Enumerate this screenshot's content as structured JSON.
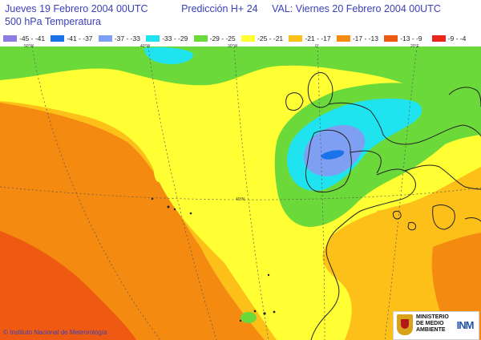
{
  "header": {
    "run": "Jueves 19 Febrero 2004 00UTC",
    "prediction": "Predicción H+ 24",
    "validity": "VAL: Viernes 20 Febrero 2004 00UTC",
    "field": "500  hPa Temperatura"
  },
  "legend": [
    {
      "label": "-45 - -41",
      "color": "#8a7fe0"
    },
    {
      "label": "-41 - -37",
      "color": "#1a73e8"
    },
    {
      "label": "-37 - -33",
      "color": "#7f9ff2"
    },
    {
      "label": "-33 - -29",
      "color": "#1fe4f0"
    },
    {
      "label": "-29 - -25",
      "color": "#6cd93a"
    },
    {
      "label": "-25 - -21",
      "color": "#ffff33"
    },
    {
      "label": "-21 - -17",
      "color": "#fdc018"
    },
    {
      "label": "-17 - -13",
      "color": "#f58a10"
    },
    {
      "label": "-13 - -9",
      "color": "#ef5a12"
    },
    {
      "label": "-9 - -4",
      "color": "#e8261a"
    }
  ],
  "map": {
    "lon_labels": [
      "50°W",
      "40°W",
      "30°W",
      "0°",
      "20°E"
    ],
    "lat_label": "40°N",
    "colors": {
      "land_border": "#222222",
      "grid": "#555555"
    }
  },
  "footer": {
    "copyright": "© Instituto Nacional de Meteorología",
    "ministry": [
      "MINISTERIO",
      "DE MEDIO",
      "AMBIENTE"
    ],
    "agency_logo": "INM"
  }
}
